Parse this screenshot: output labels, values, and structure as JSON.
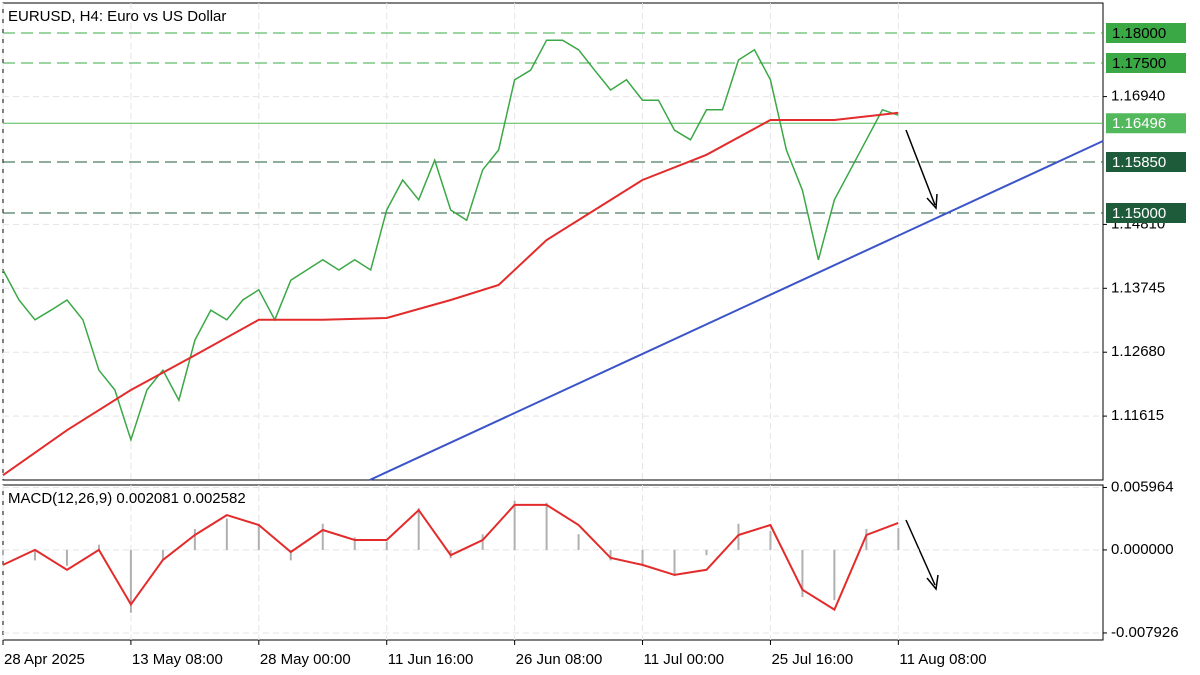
{
  "chart_data": [
    {
      "type": "line",
      "title": "EURUSD, H4:  Euro vs US Dollar",
      "xlim": [
        0,
        8.6
      ],
      "ylim": [
        1.1055,
        1.185
      ],
      "xticks": [
        {
          "value": 0,
          "label": "28 Apr 2025"
        },
        {
          "value": 1,
          "label": "13 May 08:00"
        },
        {
          "value": 2,
          "label": "28 May 00:00"
        },
        {
          "value": 3,
          "label": "11 Jun 16:00"
        },
        {
          "value": 4,
          "label": "26 Jun 08:00"
        },
        {
          "value": 5,
          "label": "11 Jul 00:00"
        },
        {
          "value": 6,
          "label": "25 Jul 16:00"
        },
        {
          "value": 7,
          "label": "11 Aug 08:00"
        }
      ],
      "yticks": [
        1.11615,
        {
          "value": 1.1268,
          "label": "1.12680"
        },
        1.13745,
        {
          "value": 1.1481,
          "label": "1.14810"
        },
        {
          "value": 1.1694,
          "label": "1.16940"
        }
      ],
      "grid": true,
      "levels": [
        {
          "value": 1.18,
          "label": "1.18000",
          "color": "#3aa845",
          "text_color": "#000000"
        },
        {
          "value": 1.175,
          "label": "1.17500",
          "color": "#3aa845",
          "text_color": "#000000"
        },
        {
          "value": 1.16496,
          "label": "1.16496",
          "color": "#52b85c",
          "text_color": "#ffffff"
        },
        {
          "value": 1.1585,
          "label": "1.15850",
          "color": "#1e5b3a",
          "text_color": "#ffffff"
        },
        {
          "value": 1.15,
          "label": "1.15000",
          "color": "#1e5b3a",
          "text_color": "#ffffff"
        }
      ],
      "series": [
        {
          "name": "EURUSD",
          "color": "#3aa845",
          "x": [
            0,
            0.125,
            0.25,
            0.375,
            0.5,
            0.625,
            0.75,
            0.875,
            1,
            1.125,
            1.25,
            1.375,
            1.5,
            1.625,
            1.75,
            1.875,
            2,
            2.125,
            2.25,
            2.375,
            2.5,
            2.625,
            2.75,
            2.875,
            3,
            3.125,
            3.25,
            3.375,
            3.5,
            3.625,
            3.75,
            3.875,
            4,
            4.125,
            4.25,
            4.375,
            4.5,
            4.625,
            4.75,
            4.875,
            5,
            5.125,
            5.25,
            5.375,
            5.5,
            5.625,
            5.75,
            5.875,
            6,
            6.125,
            6.25,
            6.375,
            6.5,
            6.625,
            6.75,
            6.875,
            7
          ],
          "values": [
            1.1405,
            1.1355,
            1.1322,
            1.1338,
            1.1355,
            1.1322,
            1.1238,
            1.1205,
            1.1122,
            1.1205,
            1.1238,
            1.1188,
            1.1288,
            1.1338,
            1.1322,
            1.1355,
            1.1372,
            1.1322,
            1.1388,
            1.1405,
            1.1422,
            1.1405,
            1.1422,
            1.1405,
            1.1505,
            1.1555,
            1.1522,
            1.1588,
            1.1505,
            1.1488,
            1.1572,
            1.1605,
            1.1722,
            1.1738,
            1.1788,
            1.1788,
            1.1772,
            1.1738,
            1.1705,
            1.1722,
            1.1688,
            1.1688,
            1.1638,
            1.1622,
            1.1672,
            1.1672,
            1.1755,
            1.1772,
            1.1722,
            1.1605,
            1.1538,
            1.1422,
            1.1522,
            1.1572,
            1.1622,
            1.1672,
            1.1663
          ]
        },
        {
          "name": "MA",
          "color": "#e32b2b",
          "x": [
            0,
            0.5,
            1,
            1.5,
            2,
            2.5,
            3,
            3.5,
            3.875,
            4.25,
            4.625,
            5,
            5.5,
            6,
            6.5,
            7
          ],
          "values": [
            1.1063,
            1.1138,
            1.1205,
            1.1263,
            1.1322,
            1.1322,
            1.1325,
            1.1355,
            1.138,
            1.1455,
            1.1505,
            1.1555,
            1.1597,
            1.1655,
            1.1655,
            1.1667
          ]
        },
        {
          "name": "Trendline",
          "color": "#3b55c9",
          "x": [
            2.867,
            8.6
          ],
          "values": [
            1.1055,
            1.162
          ]
        }
      ]
    },
    {
      "type": "macd",
      "title": "MACD(12,26,9) 0.002081 0.002582",
      "xlim": [
        0,
        8.6
      ],
      "ylim": [
        -0.0086,
        0.0062
      ],
      "yticks": [
        0.005964,
        {
          "value": 0,
          "label": "0.000000"
        },
        -0.007926
      ],
      "x": [
        0,
        0.25,
        0.5,
        0.75,
        1,
        1.25,
        1.5,
        1.75,
        2,
        2.25,
        2.5,
        2.75,
        3,
        3.25,
        3.5,
        3.75,
        4,
        4.25,
        4.5,
        4.75,
        5,
        5.25,
        5.5,
        5.75,
        6,
        6.25,
        6.5,
        6.75,
        7
      ],
      "series": [
        {
          "name": "MACD",
          "color": "#b0b0b0",
          "values": [
            -0.0005,
            -0.001,
            -0.0015,
            0.0005,
            -0.006,
            -0.001,
            0.002,
            0.003,
            0.0025,
            -0.001,
            0.0025,
            0.0012,
            0.0008,
            0.004,
            -0.0008,
            0.0015,
            0.0047,
            0.0045,
            0.0015,
            -0.001,
            -0.0015,
            -0.0025,
            -0.0005,
            0.0025,
            0.0018,
            -0.0045,
            -0.0048,
            0.002,
            0.002081
          ]
        },
        {
          "name": "Signal",
          "color": "#e32b2b",
          "values": [
            -0.00143,
            0,
            -0.0019,
            0,
            -0.0052,
            -0.00095,
            0.00143,
            0.00333,
            0.00238,
            -0.0002,
            0.0019,
            0.00095,
            0.00095,
            0.0038,
            -0.0005,
            0.00095,
            0.0043,
            0.0043,
            0.00238,
            -0.00076,
            -0.00143,
            -0.00238,
            -0.0019,
            0.00143,
            0.00238,
            -0.0038,
            -0.0057,
            0.00143,
            0.002582
          ]
        }
      ]
    }
  ]
}
